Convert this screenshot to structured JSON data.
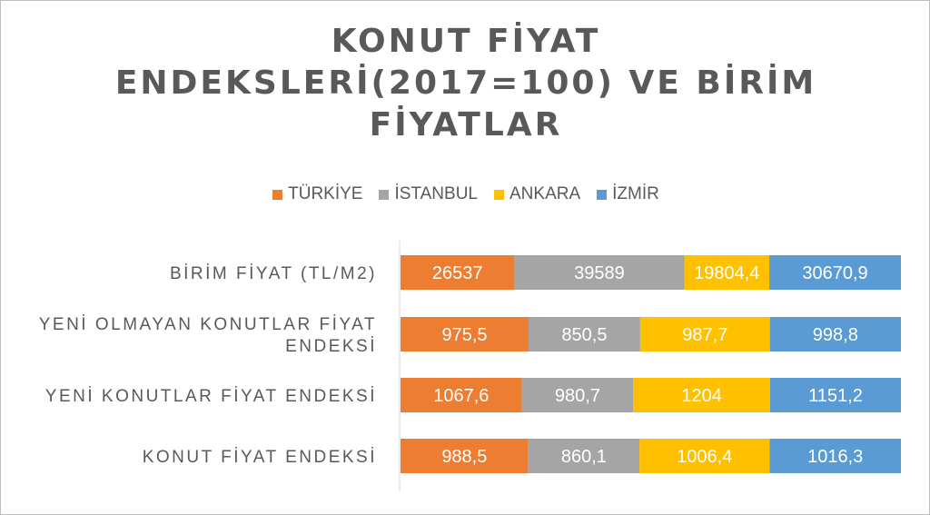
{
  "chart_data": {
    "type": "bar",
    "orientation": "horizontal",
    "stacked": "percent",
    "title_lines": [
      "KONUT FİYAT",
      "ENDEKSLERİ(2017=100)  VE BİRİM",
      "FİYATLAR"
    ],
    "categories": [
      [
        "BİRİM FİYAT (TL/M2)"
      ],
      [
        "YENİ OLMAYAN KONUTLAR FİYAT",
        "ENDEKSİ"
      ],
      [
        "YENİ KONUTLAR FİYAT ENDEKSİ"
      ],
      [
        "KONUT FİYAT ENDEKSİ"
      ]
    ],
    "series": [
      {
        "name": "TÜRKİYE",
        "color": "#ED7D31",
        "values": [
          26537,
          975.5,
          1067.6,
          988.5
        ],
        "labels": [
          "26537",
          "975,5",
          "1067,6",
          "988,5"
        ]
      },
      {
        "name": "İSTANBUL",
        "color": "#A5A5A5",
        "values": [
          39589,
          850.5,
          980.7,
          860.1
        ],
        "labels": [
          "39589",
          "850,5",
          "980,7",
          "860,1"
        ]
      },
      {
        "name": "ANKARA",
        "color": "#FFC000",
        "values": [
          19804.4,
          987.7,
          1204,
          1006.4
        ],
        "labels": [
          "19804,4",
          "987,7",
          "1204",
          "1006,4"
        ]
      },
      {
        "name": "İZMİR",
        "color": "#5B9BD5",
        "values": [
          30670.9,
          998.8,
          1151.2,
          1016.3
        ],
        "labels": [
          "30670,9",
          "998,8",
          "1151,2",
          "1016,3"
        ]
      }
    ],
    "legend_position": "top",
    "grid": false
  }
}
